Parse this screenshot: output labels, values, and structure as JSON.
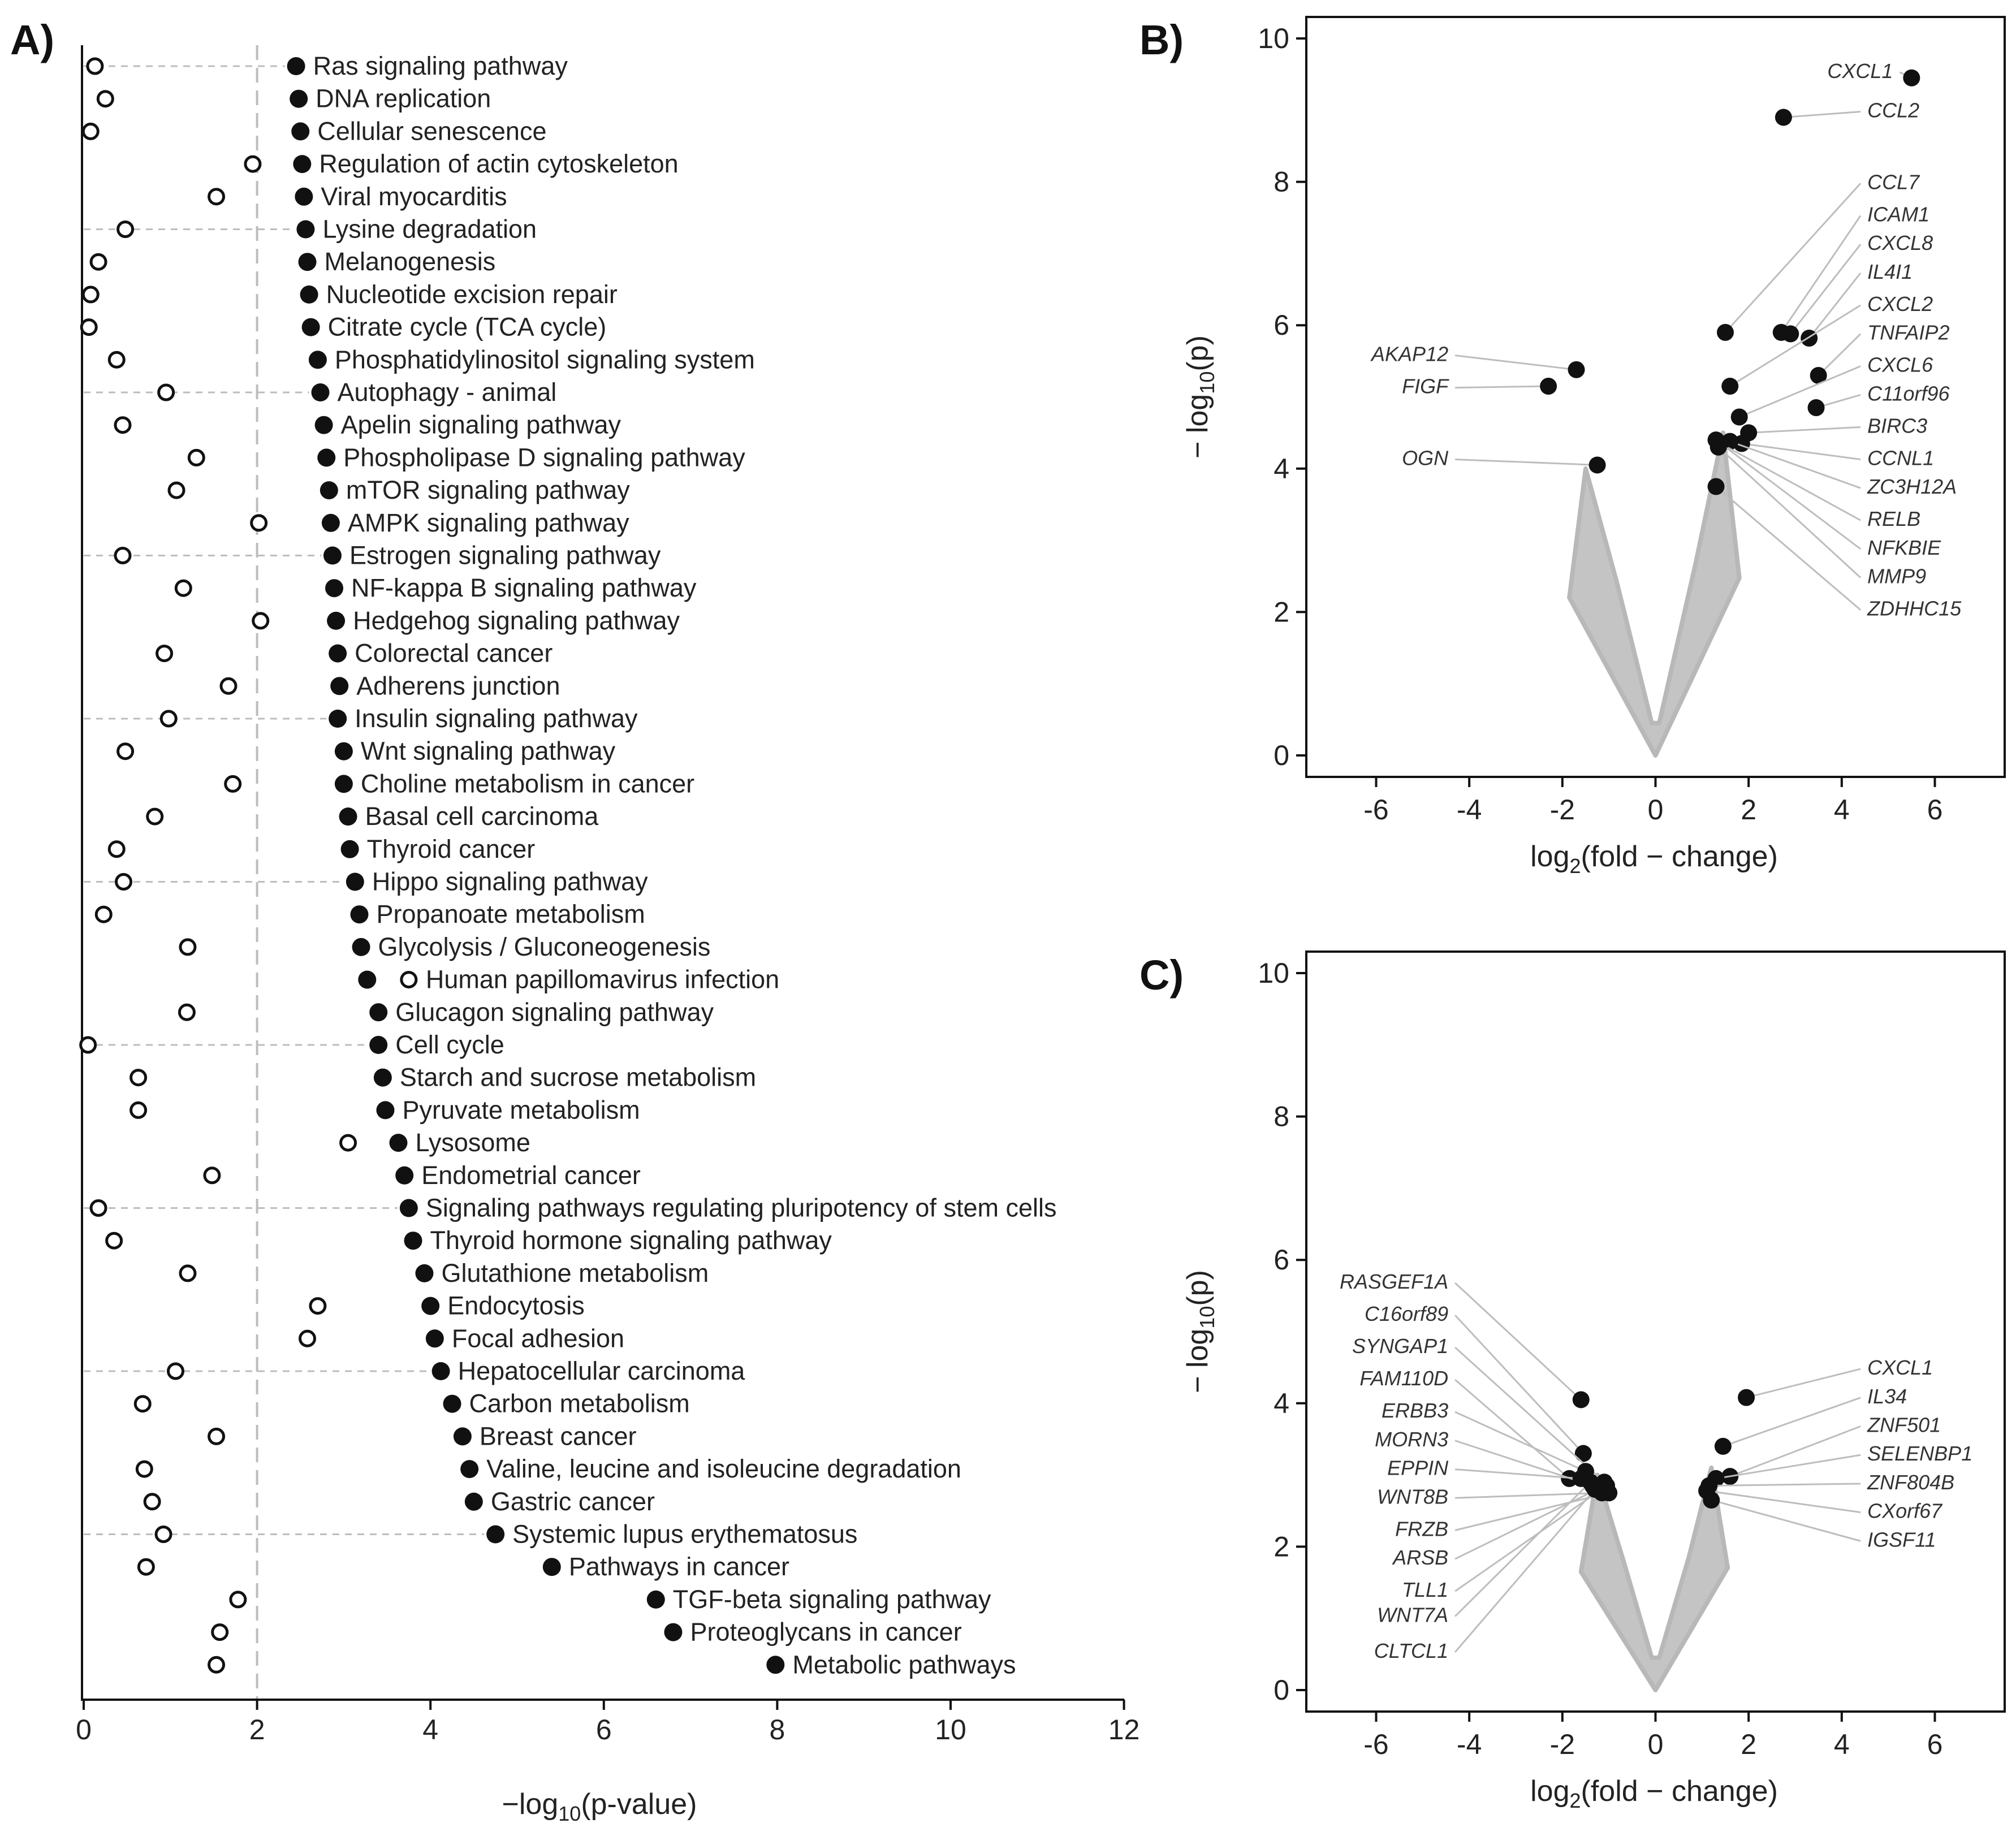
{
  "chart_data": [
    {
      "panel": "A)",
      "type": "scatter",
      "xlabel": "−log10(p-value)",
      "xlim": [
        0,
        12
      ],
      "xticks": [
        0,
        2,
        4,
        6,
        8,
        10,
        12
      ],
      "threshold": 2,
      "pathways": [
        {
          "name": "Ras signaling pathway",
          "filled": 2.45,
          "open": 0.13
        },
        {
          "name": "DNA replication",
          "filled": 2.48,
          "open": 0.25
        },
        {
          "name": "Cellular senescence",
          "filled": 2.5,
          "open": 0.08
        },
        {
          "name": "Regulation of actin cytoskeleton",
          "filled": 2.52,
          "open": 1.95
        },
        {
          "name": "Viral myocarditis",
          "filled": 2.54,
          "open": 1.53
        },
        {
          "name": "Lysine degradation",
          "filled": 2.56,
          "open": 0.48
        },
        {
          "name": "Melanogenesis",
          "filled": 2.58,
          "open": 0.17
        },
        {
          "name": "Nucleotide excision repair",
          "filled": 2.6,
          "open": 0.08
        },
        {
          "name": "Citrate cycle (TCA cycle)",
          "filled": 2.62,
          "open": 0.06
        },
        {
          "name": "Phosphatidylinositol signaling system",
          "filled": 2.7,
          "open": 0.38
        },
        {
          "name": "Autophagy - animal",
          "filled": 2.73,
          "open": 0.95
        },
        {
          "name": "Apelin signaling pathway",
          "filled": 2.77,
          "open": 0.45
        },
        {
          "name": "Phospholipase D signaling pathway",
          "filled": 2.8,
          "open": 1.3
        },
        {
          "name": "mTOR signaling pathway",
          "filled": 2.83,
          "open": 1.07
        },
        {
          "name": "AMPK signaling pathway",
          "filled": 2.85,
          "open": 2.02
        },
        {
          "name": "Estrogen signaling pathway",
          "filled": 2.87,
          "open": 0.45
        },
        {
          "name": "NF-kappa B signaling pathway",
          "filled": 2.89,
          "open": 1.15
        },
        {
          "name": "Hedgehog signaling pathway",
          "filled": 2.91,
          "open": 2.04
        },
        {
          "name": "Colorectal cancer",
          "filled": 2.93,
          "open": 0.93
        },
        {
          "name": "Adherens junction",
          "filled": 2.95,
          "open": 1.67
        },
        {
          "name": "Insulin signaling pathway",
          "filled": 2.93,
          "open": 0.98
        },
        {
          "name": "Wnt signaling pathway",
          "filled": 3.0,
          "open": 0.48
        },
        {
          "name": "Choline metabolism in cancer",
          "filled": 3.0,
          "open": 1.72
        },
        {
          "name": "Basal cell carcinoma",
          "filled": 3.05,
          "open": 0.82
        },
        {
          "name": "Thyroid cancer",
          "filled": 3.07,
          "open": 0.38
        },
        {
          "name": "Hippo signaling pathway",
          "filled": 3.13,
          "open": 0.46
        },
        {
          "name": "Propanoate metabolism",
          "filled": 3.18,
          "open": 0.23
        },
        {
          "name": "Glycolysis / Gluconeogenesis",
          "filled": 3.2,
          "open": 1.2
        },
        {
          "name": "Human papillomavirus infection",
          "filled": 3.27,
          "open": 3.75,
          "highlight": "open"
        },
        {
          "name": "Glucagon signaling pathway",
          "filled": 3.4,
          "open": 1.19
        },
        {
          "name": "Cell cycle",
          "filled": 3.4,
          "open": 0.05
        },
        {
          "name": "Starch and sucrose metabolism",
          "filled": 3.45,
          "open": 0.63
        },
        {
          "name": "Pyruvate metabolism",
          "filled": 3.48,
          "open": 0.63
        },
        {
          "name": "Lysosome",
          "filled": 3.63,
          "open": 3.05
        },
        {
          "name": "Endometrial cancer",
          "filled": 3.7,
          "open": 1.48
        },
        {
          "name": "Signaling pathways regulating pluripotency of stem cells",
          "filled": 3.75,
          "open": 0.17
        },
        {
          "name": "Thyroid hormone signaling pathway",
          "filled": 3.8,
          "open": 0.35
        },
        {
          "name": "Glutathione metabolism",
          "filled": 3.93,
          "open": 1.2
        },
        {
          "name": "Endocytosis",
          "filled": 4.0,
          "open": 2.7
        },
        {
          "name": "Focal adhesion",
          "filled": 4.05,
          "open": 2.58
        },
        {
          "name": "Hepatocellular carcinoma",
          "filled": 4.12,
          "open": 1.06
        },
        {
          "name": "Carbon metabolism",
          "filled": 4.25,
          "open": 0.68
        },
        {
          "name": "Breast cancer",
          "filled": 4.37,
          "open": 1.53
        },
        {
          "name": "Valine, leucine and isoleucine degradation",
          "filled": 4.45,
          "open": 0.7
        },
        {
          "name": "Gastric cancer",
          "filled": 4.5,
          "open": 0.79
        },
        {
          "name": "Systemic lupus erythematosus",
          "filled": 4.75,
          "open": 0.92
        },
        {
          "name": "Pathways in cancer",
          "filled": 5.4,
          "open": 0.72
        },
        {
          "name": "TGF-beta signaling pathway",
          "filled": 6.6,
          "open": 1.78
        },
        {
          "name": "Proteoglycans in cancer",
          "filled": 6.8,
          "open": 1.57
        },
        {
          "name": "Metabolic pathways",
          "filled": 7.98,
          "open": 1.53
        }
      ]
    },
    {
      "panel": "B)",
      "type": "scatter",
      "subtype": "volcano",
      "xlabel": "log2(fold − change)",
      "ylabel": "−log10(p)",
      "xlim": [
        -7.5,
        7.5
      ],
      "ylim": [
        -0.3,
        10.3
      ],
      "xticks": [
        -6,
        -4,
        -2,
        0,
        2,
        4,
        6
      ],
      "yticks": [
        0,
        2,
        4,
        6,
        8,
        10
      ],
      "cloud": {
        "left_top": [
          -1.5,
          4.0
        ],
        "right_top": [
          1.45,
          4.5
        ]
      },
      "genes": [
        {
          "name": "CXCL1",
          "x": 5.5,
          "y": 9.45,
          "lx": 5.1,
          "ly": 9.45,
          "side": "end"
        },
        {
          "name": "CCL2",
          "x": 2.75,
          "y": 8.9,
          "lx": 4.55,
          "ly": 8.9,
          "side": "start"
        },
        {
          "name": "CCL7",
          "x": 1.5,
          "y": 5.9,
          "lx": 4.55,
          "ly": 7.9,
          "side": "start"
        },
        {
          "name": "ICAM1",
          "x": 2.7,
          "y": 5.9,
          "lx": 4.55,
          "ly": 7.45,
          "side": "start"
        },
        {
          "name": "CXCL8",
          "x": 2.9,
          "y": 5.88,
          "lx": 4.55,
          "ly": 7.05,
          "side": "start"
        },
        {
          "name": "IL4I1",
          "x": 3.3,
          "y": 5.82,
          "lx": 4.55,
          "ly": 6.65,
          "side": "start"
        },
        {
          "name": "CXCL2",
          "x": 1.6,
          "y": 5.15,
          "lx": 4.55,
          "ly": 6.2,
          "side": "start"
        },
        {
          "name": "TNFAIP2",
          "x": 3.5,
          "y": 5.3,
          "lx": 4.55,
          "ly": 5.8,
          "side": "start"
        },
        {
          "name": "CXCL6",
          "x": 1.8,
          "y": 4.72,
          "lx": 4.55,
          "ly": 5.35,
          "side": "start"
        },
        {
          "name": "C11orf96",
          "x": 3.45,
          "y": 4.85,
          "lx": 4.55,
          "ly": 4.95,
          "side": "start"
        },
        {
          "name": "BIRC3",
          "x": 2.0,
          "y": 4.5,
          "lx": 4.55,
          "ly": 4.5,
          "side": "start"
        },
        {
          "name": "CCNL1",
          "x": 1.85,
          "y": 4.35,
          "lx": 4.55,
          "ly": 4.05,
          "side": "start"
        },
        {
          "name": "ZC3H12A",
          "x": 1.6,
          "y": 4.38,
          "lx": 4.55,
          "ly": 3.65,
          "side": "start"
        },
        {
          "name": "RELB",
          "x": 1.4,
          "y": 4.35,
          "lx": 4.55,
          "ly": 3.2,
          "side": "start"
        },
        {
          "name": "NFKBIE",
          "x": 1.3,
          "y": 4.4,
          "lx": 4.55,
          "ly": 2.8,
          "side": "start"
        },
        {
          "name": "MMP9",
          "x": 1.35,
          "y": 4.3,
          "lx": 4.55,
          "ly": 2.4,
          "side": "start"
        },
        {
          "name": "ZDHHC15",
          "x": 1.3,
          "y": 3.75,
          "lx": 4.55,
          "ly": 1.95,
          "side": "start"
        },
        {
          "name": "AKAP12",
          "x": -1.7,
          "y": 5.38,
          "lx": -4.45,
          "ly": 5.5,
          "side": "end"
        },
        {
          "name": "FIGF",
          "x": -2.3,
          "y": 5.15,
          "lx": -4.45,
          "ly": 5.05,
          "side": "end"
        },
        {
          "name": "OGN",
          "x": -1.25,
          "y": 4.05,
          "lx": -4.45,
          "ly": 4.05,
          "side": "end"
        }
      ]
    },
    {
      "panel": "C)",
      "type": "scatter",
      "subtype": "volcano",
      "xlabel": "log2(fold − change)",
      "ylabel": "−log10(p)",
      "xlim": [
        -7.5,
        7.5
      ],
      "ylim": [
        -0.3,
        10.3
      ],
      "xticks": [
        -6,
        -4,
        -2,
        0,
        2,
        4,
        6
      ],
      "yticks": [
        0,
        2,
        4,
        6,
        8,
        10
      ],
      "cloud": {
        "left_top": [
          -1.25,
          3.0
        ],
        "right_top": [
          1.2,
          3.1
        ]
      },
      "genes": [
        {
          "name": "CXCL1",
          "x": 1.95,
          "y": 4.08,
          "lx": 4.55,
          "ly": 4.4,
          "side": "start"
        },
        {
          "name": "IL34",
          "x": 1.45,
          "y": 3.4,
          "lx": 4.55,
          "ly": 4.0,
          "side": "start"
        },
        {
          "name": "ZNF501",
          "x": 1.6,
          "y": 2.98,
          "lx": 4.55,
          "ly": 3.6,
          "side": "start"
        },
        {
          "name": "SELENBP1",
          "x": 1.3,
          "y": 2.95,
          "lx": 4.55,
          "ly": 3.2,
          "side": "start"
        },
        {
          "name": "ZNF804B",
          "x": 1.15,
          "y": 2.85,
          "lx": 4.55,
          "ly": 2.8,
          "side": "start"
        },
        {
          "name": "CXorf67",
          "x": 1.1,
          "y": 2.78,
          "lx": 4.55,
          "ly": 2.4,
          "side": "start"
        },
        {
          "name": "IGSF11",
          "x": 1.2,
          "y": 2.65,
          "lx": 4.55,
          "ly": 2.0,
          "side": "start"
        },
        {
          "name": "RASGEF1A",
          "x": -1.6,
          "y": 4.05,
          "lx": -4.45,
          "ly": 5.6,
          "side": "end"
        },
        {
          "name": "C16orf89",
          "x": -1.55,
          "y": 3.3,
          "lx": -4.45,
          "ly": 5.15,
          "side": "end"
        },
        {
          "name": "SYNGAP1",
          "x": -1.1,
          "y": 2.9,
          "lx": -4.45,
          "ly": 4.7,
          "side": "end"
        },
        {
          "name": "FAM110D",
          "x": -1.85,
          "y": 2.95,
          "lx": -4.45,
          "ly": 4.25,
          "side": "end"
        },
        {
          "name": "ERBB3",
          "x": -1.5,
          "y": 3.05,
          "lx": -4.45,
          "ly": 3.8,
          "side": "end"
        },
        {
          "name": "MORN3",
          "x": -1.35,
          "y": 2.85,
          "lx": -4.45,
          "ly": 3.4,
          "side": "end"
        },
        {
          "name": "EPPIN",
          "x": -1.6,
          "y": 2.95,
          "lx": -4.45,
          "ly": 3.0,
          "side": "end"
        },
        {
          "name": "WNT8B",
          "x": -1.15,
          "y": 2.75,
          "lx": -4.45,
          "ly": 2.6,
          "side": "end"
        },
        {
          "name": "FRZB",
          "x": -1.0,
          "y": 2.75,
          "lx": -4.45,
          "ly": 2.15,
          "side": "end"
        },
        {
          "name": "ARSB",
          "x": -1.25,
          "y": 2.8,
          "lx": -4.45,
          "ly": 1.75,
          "side": "end"
        },
        {
          "name": "TLL1",
          "x": -1.05,
          "y": 2.85,
          "lx": -4.45,
          "ly": 1.3,
          "side": "end"
        },
        {
          "name": "WNT7A",
          "x": -1.4,
          "y": 2.9,
          "lx": -4.45,
          "ly": 0.95,
          "side": "end"
        },
        {
          "name": "CLTCL1",
          "x": -1.3,
          "y": 2.8,
          "lx": -4.45,
          "ly": 0.45,
          "side": "end"
        }
      ]
    }
  ]
}
